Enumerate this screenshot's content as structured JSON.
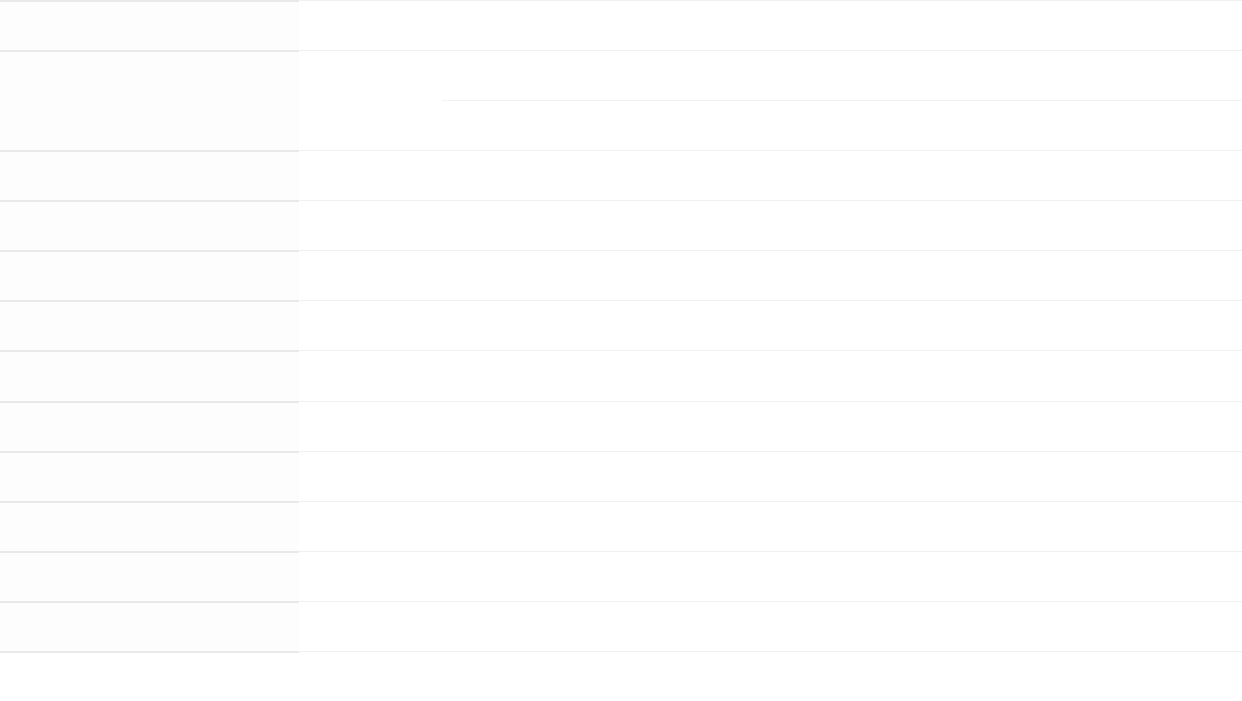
{
  "table": {
    "rows": [
      "",
      "",
      "",
      "",
      "",
      "",
      "",
      "",
      "",
      "",
      "",
      "",
      "",
      ""
    ]
  },
  "colors": {
    "left_divider": "#e9e9e9",
    "right_divider": "#f1f1f1",
    "left_background": "#fdfdfd"
  }
}
